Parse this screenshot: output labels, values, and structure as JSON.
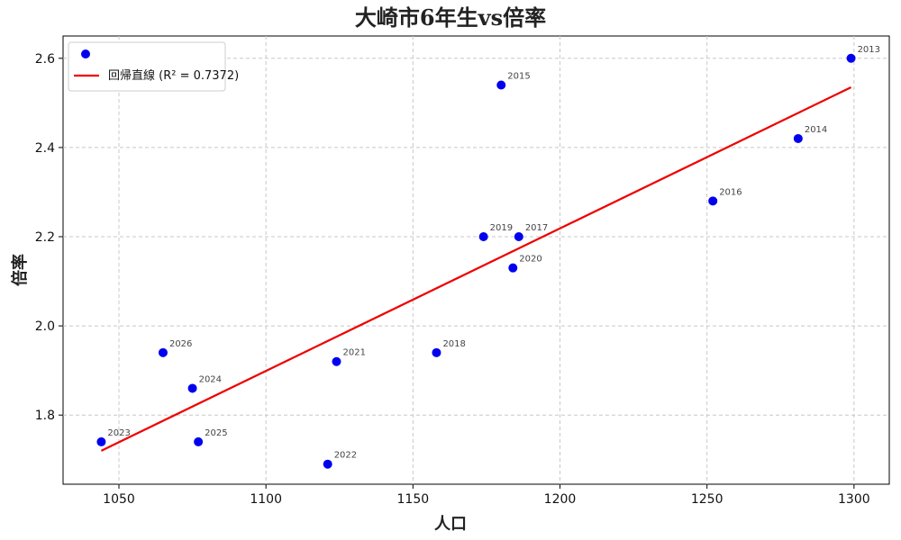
{
  "chart_data": {
    "type": "scatter",
    "title": "大崎市6年生vs倍率",
    "xlabel": "人口",
    "ylabel": "倍率",
    "xlim": [
      1031,
      1312
    ],
    "ylim": [
      1.645,
      2.65
    ],
    "xticks": [
      1050,
      1100,
      1150,
      1200,
      1250,
      1300
    ],
    "yticks": [
      1.8,
      2.0,
      2.2,
      2.4,
      2.6
    ],
    "grid": true,
    "legend_position": "top-left",
    "point_color": "#0000ee",
    "line_color": "#ee0000",
    "points": [
      {
        "label": "2013",
        "x": 1299,
        "y": 2.6
      },
      {
        "label": "2014",
        "x": 1281,
        "y": 2.42
      },
      {
        "label": "2015",
        "x": 1180,
        "y": 2.54
      },
      {
        "label": "2016",
        "x": 1252,
        "y": 2.28
      },
      {
        "label": "2017",
        "x": 1186,
        "y": 2.2
      },
      {
        "label": "2018",
        "x": 1158,
        "y": 1.94
      },
      {
        "label": "2019",
        "x": 1174,
        "y": 2.2
      },
      {
        "label": "2020",
        "x": 1184,
        "y": 2.13
      },
      {
        "label": "2021",
        "x": 1124,
        "y": 1.92
      },
      {
        "label": "2022",
        "x": 1121,
        "y": 1.69
      },
      {
        "label": "2023",
        "x": 1044,
        "y": 1.74
      },
      {
        "label": "2024",
        "x": 1075,
        "y": 1.86
      },
      {
        "label": "2025",
        "x": 1077,
        "y": 1.74
      },
      {
        "label": "2026",
        "x": 1065,
        "y": 1.94
      }
    ],
    "trendline": {
      "x": [
        1044,
        1299
      ],
      "y": [
        1.72,
        2.535
      ],
      "legend_label": "回帰直線 (R² = 0.7372)"
    }
  }
}
